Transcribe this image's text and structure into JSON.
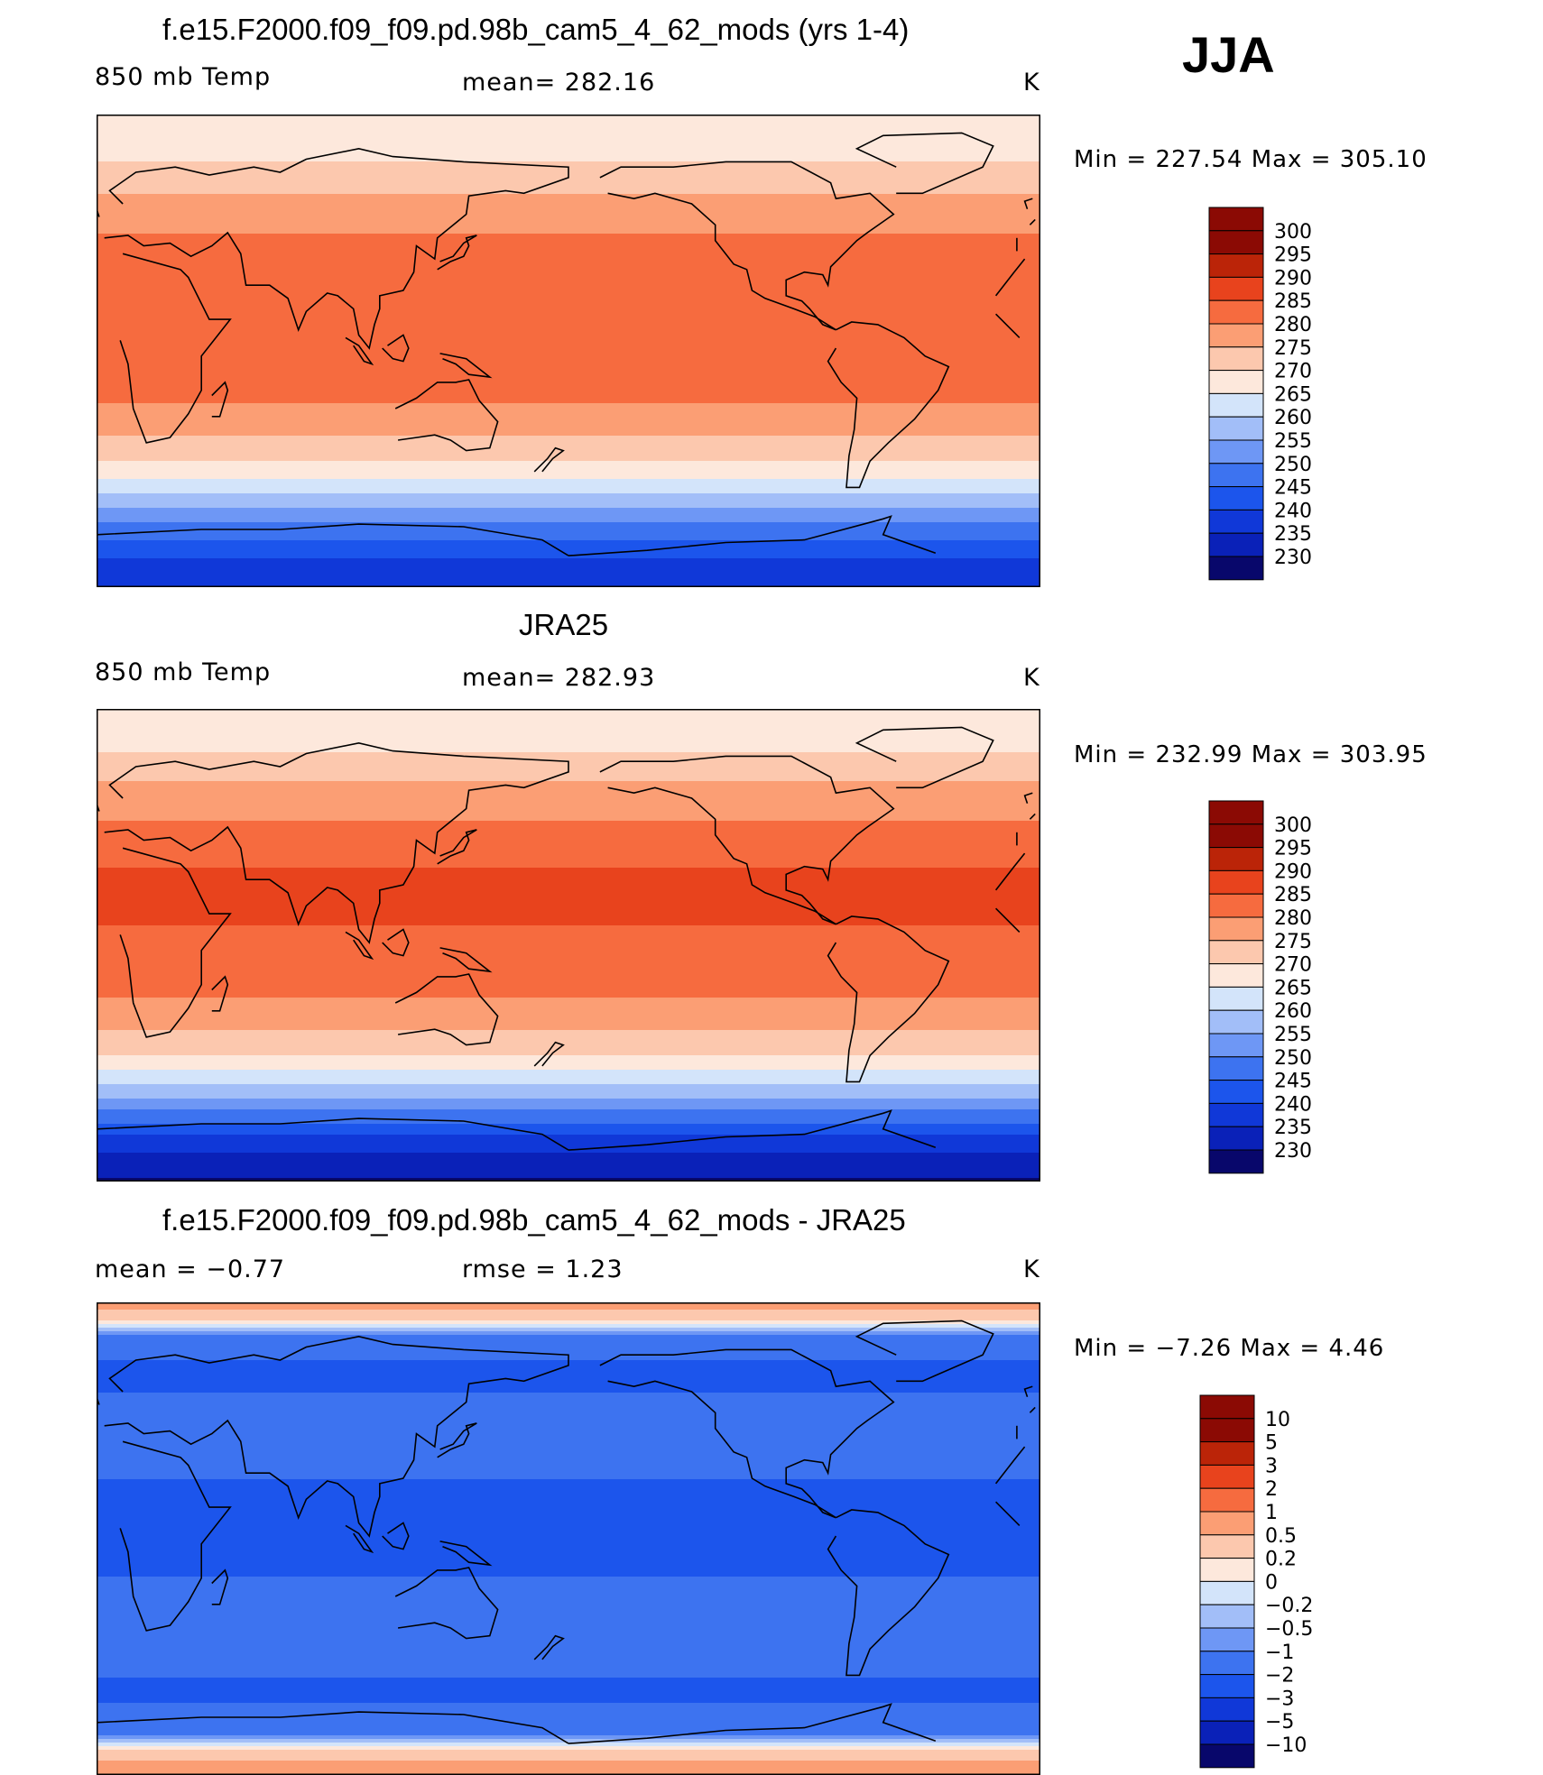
{
  "season": "JJA",
  "panels": [
    {
      "title": "f.e15.F2000.f09_f09.pd.98b_cam5_4_62_mods (yrs 1-4)",
      "left_label": "850 mb Temp",
      "center_label": "mean= 282.16",
      "units": "K",
      "minmax": "Min  =  227.54  Max  =  305.10",
      "levels": [
        "300",
        "295",
        "290",
        "285",
        "280",
        "275",
        "270",
        "265",
        "260",
        "255",
        "250",
        "245",
        "240",
        "235",
        "230"
      ]
    },
    {
      "title": "JRA25",
      "left_label": "850 mb Temp",
      "center_label": "mean= 282.93",
      "units": "K",
      "minmax": "Min  =  232.99  Max  =  303.95",
      "levels": [
        "300",
        "295",
        "290",
        "285",
        "280",
        "275",
        "270",
        "265",
        "260",
        "255",
        "250",
        "245",
        "240",
        "235",
        "230"
      ]
    },
    {
      "title": "f.e15.F2000.f09_f09.pd.98b_cam5_4_62_mods - JRA25",
      "left_label": "mean =    −0.77",
      "center_label": "rmse =     1.23",
      "units": "K",
      "minmax": "Min  =    −7.26  Max  =      4.46",
      "levels": [
        "10",
        "5",
        "3",
        "2",
        "1",
        "0.5",
        "0.2",
        "0",
        "−0.2",
        "−0.5",
        "−1",
        "−2",
        "−3",
        "−5",
        "−10"
      ]
    }
  ],
  "chart_data": [
    {
      "type": "heatmap",
      "title": "f.e15.F2000.f09_f09.pd.98b_cam5_4_62_mods (yrs 1-4)",
      "variable": "850 mb Temp",
      "units": "K",
      "mean": 282.16,
      "min": 227.54,
      "max": 305.1,
      "contour_levels": [
        230,
        235,
        240,
        245,
        250,
        255,
        260,
        265,
        270,
        275,
        280,
        285,
        290,
        295,
        300
      ],
      "zonal_profile": {
        "lat": [
          90,
          75,
          60,
          45,
          30,
          15,
          0,
          -15,
          -30,
          -45,
          -60,
          -75,
          -90
        ],
        "value": [
          271,
          274,
          280,
          285,
          289,
          290,
          288,
          287,
          281,
          273,
          260,
          247,
          240
        ]
      },
      "colormap": [
        "#08076b",
        "#0a21b8",
        "#1038d8",
        "#1c55ec",
        "#3d73f0",
        "#6e97f5",
        "#a2bef8",
        "#d3e4fa",
        "#fde8dc",
        "#fcc8ae",
        "#fb9e74",
        "#f66b3f",
        "#e8431d",
        "#bb2408",
        "#8b0a04"
      ]
    },
    {
      "type": "heatmap",
      "title": "JRA25",
      "variable": "850 mb Temp",
      "units": "K",
      "mean": 282.93,
      "min": 232.99,
      "max": 303.95,
      "contour_levels": [
        230,
        235,
        240,
        245,
        250,
        255,
        260,
        265,
        270,
        275,
        280,
        285,
        290,
        295,
        300
      ],
      "zonal_profile": {
        "lat": [
          90,
          75,
          60,
          45,
          30,
          15,
          0,
          -15,
          -30,
          -45,
          -60,
          -75,
          -90
        ],
        "value": [
          272,
          274,
          281,
          286,
          290,
          291,
          289,
          287,
          281,
          273,
          258,
          242,
          234
        ]
      },
      "colormap": [
        "#08076b",
        "#0a21b8",
        "#1038d8",
        "#1c55ec",
        "#3d73f0",
        "#6e97f5",
        "#a2bef8",
        "#d3e4fa",
        "#fde8dc",
        "#fcc8ae",
        "#fb9e74",
        "#f66b3f",
        "#e8431d",
        "#bb2408",
        "#8b0a04"
      ]
    },
    {
      "type": "heatmap",
      "title": "f.e15.F2000.f09_f09.pd.98b_cam5_4_62_mods - JRA25",
      "variable": "850 mb Temp difference",
      "units": "K",
      "mean": -0.77,
      "rmse": 1.23,
      "min": -7.26,
      "max": 4.46,
      "contour_levels": [
        -10,
        -5,
        -3,
        -2,
        -1,
        -0.5,
        -0.2,
        0,
        0.2,
        0.5,
        1,
        2,
        3,
        5,
        10
      ],
      "zonal_profile": {
        "lat": [
          90,
          75,
          60,
          45,
          30,
          15,
          0,
          -15,
          -30,
          -45,
          -60,
          -75,
          -90
        ],
        "value": [
          1.5,
          -0.8,
          -1.2,
          -0.6,
          -0.9,
          -1.1,
          -1.2,
          -1.0,
          -0.8,
          -0.9,
          -1.1,
          -0.5,
          2.0
        ]
      },
      "colormap": [
        "#08076b",
        "#0a21b8",
        "#1038d8",
        "#1c55ec",
        "#3d73f0",
        "#6e97f5",
        "#a2bef8",
        "#d3e4fa",
        "#fde8dc",
        "#fcc8ae",
        "#fb9e74",
        "#f66b3f",
        "#e8431d",
        "#bb2408",
        "#8b0a04"
      ]
    }
  ]
}
